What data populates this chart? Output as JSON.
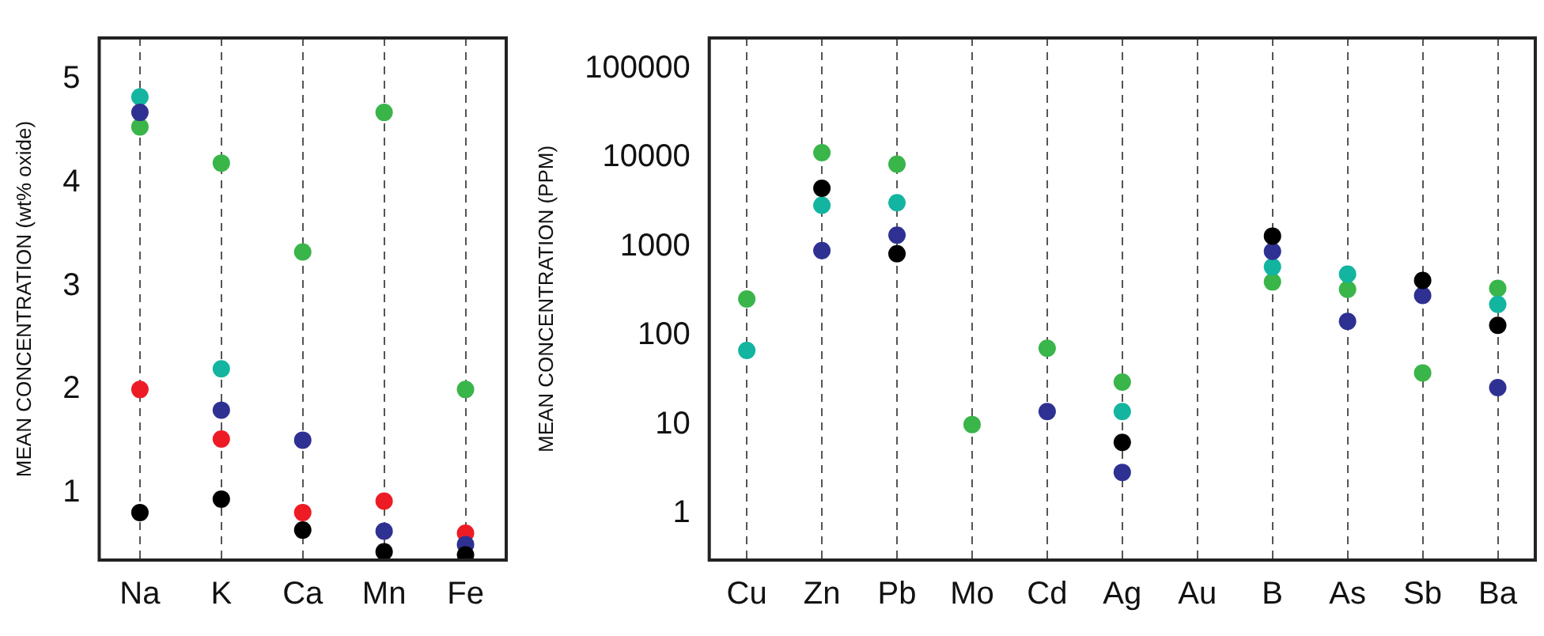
{
  "chart_data": [
    {
      "type": "scatter",
      "ylabel": "MEAN CONCENTRATION (wt% oxide)",
      "categories": [
        "Na",
        "K",
        "Ca",
        "Mn",
        "Fe"
      ],
      "ylim": [
        0.35,
        5.4
      ],
      "yticks": [
        1,
        2,
        3,
        4,
        5
      ],
      "grid": "x",
      "marker": "circle",
      "series": [
        {
          "color": "#000000",
          "values": [
            0.81,
            0.94,
            0.64,
            0.43,
            0.4
          ]
        },
        {
          "color": "#2e3192",
          "values": [
            4.68,
            1.8,
            1.51,
            0.63,
            0.5
          ]
        },
        {
          "color": "#ed1c24",
          "values": [
            2.0,
            1.52,
            0.81,
            0.92,
            0.61
          ]
        },
        {
          "color": "#13b5a0",
          "values": [
            4.83,
            2.2,
            null,
            null,
            null
          ]
        },
        {
          "color": "#39b54a",
          "values": [
            4.54,
            4.19,
            3.33,
            4.68,
            2.0
          ]
        }
      ]
    },
    {
      "type": "scatter",
      "ylabel": "MEAN CONCENTRATION (PPM)",
      "categories": [
        "Cu",
        "Zn",
        "Pb",
        "Mo",
        "Cd",
        "Ag",
        "Au",
        "B",
        "As",
        "Sb",
        "Ba"
      ],
      "log": true,
      "ylim": [
        0.3,
        220000
      ],
      "yticks": [
        1,
        10,
        100,
        1000,
        10000,
        100000
      ],
      "grid": "x",
      "marker": "circle",
      "series": [
        {
          "color": "#000000",
          "values": [
            null,
            4500,
            830,
            null,
            null,
            6.3,
            null,
            1310,
            null,
            415,
            130
          ]
        },
        {
          "color": "#2e3192",
          "values": [
            null,
            900,
            1340,
            null,
            14,
            2.9,
            null,
            880,
            144,
            282,
            26
          ]
        },
        {
          "color": "#13b5a0",
          "values": [
            68,
            2900,
            3100,
            null,
            null,
            14,
            null,
            590,
            490,
            null,
            224
          ]
        },
        {
          "color": "#39b54a",
          "values": [
            257,
            11300,
            8400,
            10,
            72,
            30,
            null,
            400,
            330,
            38,
            339
          ]
        }
      ]
    }
  ]
}
